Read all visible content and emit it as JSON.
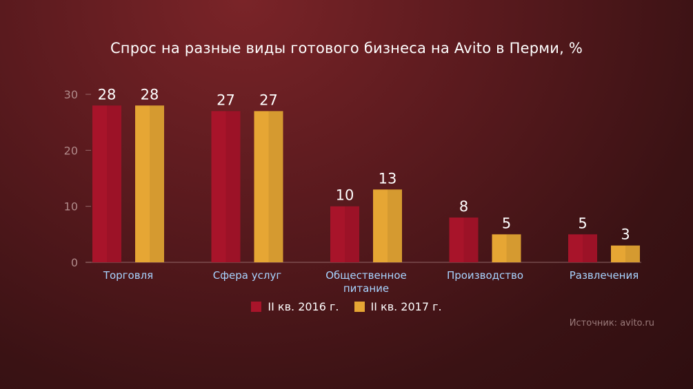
{
  "title": "Спрос на разные виды готового бизнеса на Avito в Перми, %",
  "source": "Источник: avito.ru",
  "colors": {
    "series1": "#a8142a",
    "series2": "#e6a634",
    "tick_text": "#b08a8a",
    "axis": "#b08a8a",
    "category_text": "#a8d4ff",
    "value_text": "#ffffff"
  },
  "chart_data": {
    "type": "bar",
    "title": "Спрос на разные виды готового бизнеса на Avito в Перми, %",
    "categories": [
      [
        "Торговля"
      ],
      [
        "Сфера услуг"
      ],
      [
        "Общественное",
        "питание"
      ],
      [
        "Производство"
      ],
      [
        "Развлечения"
      ]
    ],
    "series": [
      {
        "name": "II кв. 2016 г.",
        "values": [
          28,
          27,
          10,
          8,
          5
        ]
      },
      {
        "name": "II кв. 2017 г.",
        "values": [
          28,
          27,
          13,
          5,
          3
        ]
      }
    ],
    "ylim": [
      0,
      30
    ],
    "yticks": [
      0,
      10,
      20,
      30
    ],
    "grid": false,
    "legend": "bottom"
  }
}
